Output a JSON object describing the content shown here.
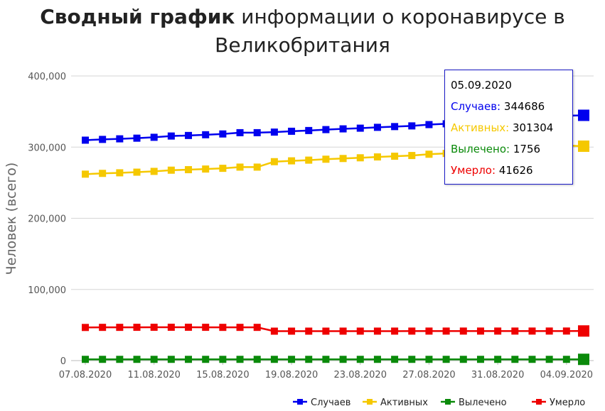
{
  "chart_data": {
    "type": "line",
    "title_bold": "Сводный график",
    "title_rest_1": " информации о коронавирусе в",
    "title_rest_2": "Великобритания",
    "ylabel": "Человек (всего)",
    "xlabel": "",
    "ylim": [
      0,
      400000
    ],
    "y_ticks": [
      "0",
      "100,000",
      "200,000",
      "300,000",
      "400,000"
    ],
    "x_ticks": [
      "07.08.2020",
      "11.08.2020",
      "15.08.2020",
      "19.08.2020",
      "23.08.2020",
      "27.08.2020",
      "31.08.2020",
      "04.09.2020"
    ],
    "grid": true,
    "legend_position": "bottom-right",
    "x": [
      "07.08.2020",
      "08.08.2020",
      "09.08.2020",
      "10.08.2020",
      "11.08.2020",
      "12.08.2020",
      "13.08.2020",
      "14.08.2020",
      "15.08.2020",
      "16.08.2020",
      "17.08.2020",
      "18.08.2020",
      "19.08.2020",
      "20.08.2020",
      "21.08.2020",
      "22.08.2020",
      "23.08.2020",
      "24.08.2020",
      "25.08.2020",
      "26.08.2020",
      "27.08.2020",
      "28.08.2020",
      "29.08.2020",
      "30.08.2020",
      "31.08.2020",
      "01.09.2020",
      "02.09.2020",
      "03.09.2020",
      "04.09.2020",
      "05.09.2020"
    ],
    "series": [
      {
        "name": "Случаев",
        "color": "#0000ee",
        "values": [
          309763,
          310825,
          311641,
          312574,
          313798,
          315581,
          316367,
          317379,
          318484,
          320286,
          320286,
          321098,
          322280,
          323313,
          324601,
          325642,
          326614,
          327798,
          328846,
          329821,
          331644,
          332752,
          334467,
          335873,
          337168,
          338676,
          340411,
          342351,
          344164,
          344686
        ]
      },
      {
        "name": "Активных",
        "color": "#f5c800",
        "values": [
          262000,
          263100,
          263900,
          264800,
          265900,
          267600,
          268300,
          269200,
          270200,
          271900,
          271900,
          279540,
          280700,
          281700,
          283000,
          284000,
          285000,
          286200,
          287200,
          288200,
          290000,
          291100,
          292800,
          294200,
          295500,
          297000,
          298700,
          300600,
          302300,
          301304
        ]
      },
      {
        "name": "Вылечено",
        "color": "#0a8a0a",
        "values": [
          1756,
          1756,
          1756,
          1756,
          1756,
          1756,
          1756,
          1756,
          1756,
          1756,
          1756,
          1756,
          1756,
          1756,
          1756,
          1756,
          1756,
          1756,
          1756,
          1756,
          1756,
          1756,
          1756,
          1756,
          1756,
          1756,
          1756,
          1756,
          1756,
          1756
        ]
      },
      {
        "name": "Умерло",
        "color": "#ee0000",
        "values": [
          46574,
          46706,
          46728,
          46791,
          46853,
          46869,
          46878,
          46791,
          46706,
          46705,
          46705,
          41369,
          41397,
          41403,
          41405,
          41423,
          41429,
          41433,
          41449,
          41465,
          41477,
          41486,
          41499,
          41501,
          41501,
          41504,
          41514,
          41527,
          41549,
          41626
        ]
      }
    ]
  },
  "tooltip": {
    "date": "05.09.2020",
    "rows": [
      {
        "label": "Случаев:",
        "value": "344686",
        "color": "#0000ee"
      },
      {
        "label": "Активных:",
        "value": "301304",
        "color": "#f5c800"
      },
      {
        "label": "Вылечено:",
        "value": "1756",
        "color": "#0a8a0a"
      },
      {
        "label": "Умерло:",
        "value": "41626",
        "color": "#ee0000"
      }
    ]
  }
}
